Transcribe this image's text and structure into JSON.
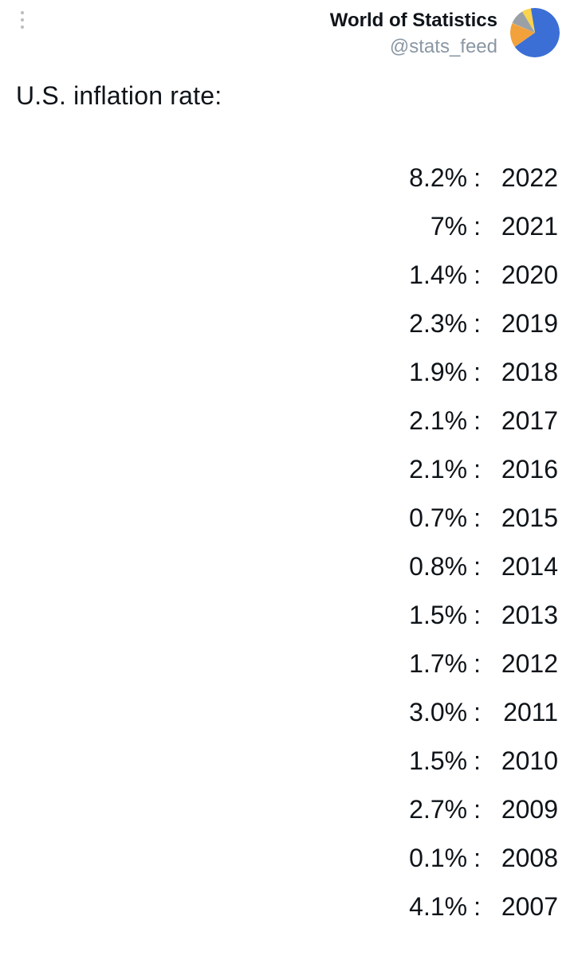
{
  "header": {
    "display_name": "World of Statistics",
    "handle": "@stats_feed",
    "avatar": {
      "type": "pie",
      "background": "#ffffff",
      "slices": [
        {
          "color": "#3b6fd6",
          "fraction": 0.68,
          "start": -10
        },
        {
          "color": "#f2a13b",
          "fraction": 0.16,
          "start": 235
        },
        {
          "color": "#9aa0a6",
          "fraction": 0.1,
          "start": 293
        },
        {
          "color": "#fbd34d",
          "fraction": 0.06,
          "start": 329
        }
      ]
    }
  },
  "post": {
    "title": "U.S. inflation rate:",
    "separator": " :",
    "rows": [
      {
        "rate": "8.2%",
        "year": "2022"
      },
      {
        "rate": "7%",
        "year": "2021"
      },
      {
        "rate": "1.4%",
        "year": "2020"
      },
      {
        "rate": "2.3%",
        "year": "2019"
      },
      {
        "rate": "1.9%",
        "year": "2018"
      },
      {
        "rate": "2.1%",
        "year": "2017"
      },
      {
        "rate": "2.1%",
        "year": "2016"
      },
      {
        "rate": "0.7%",
        "year": "2015"
      },
      {
        "rate": "0.8%",
        "year": "2014"
      },
      {
        "rate": "1.5%",
        "year": "2013"
      },
      {
        "rate": "1.7%",
        "year": "2012"
      },
      {
        "rate": "3.0%",
        "year": "2011"
      },
      {
        "rate": "1.5%",
        "year": "2010"
      },
      {
        "rate": "2.7%",
        "year": "2009"
      },
      {
        "rate": "0.1%",
        "year": "2008"
      },
      {
        "rate": "4.1%",
        "year": "2007"
      }
    ]
  },
  "colors": {
    "text": "#0f1419",
    "muted": "#8a97a3",
    "background": "#ffffff",
    "dot": "#b8bec4"
  },
  "typography": {
    "name_fontsize": 24,
    "handle_fontsize": 24,
    "title_fontsize": 32,
    "row_fontsize": 32
  }
}
